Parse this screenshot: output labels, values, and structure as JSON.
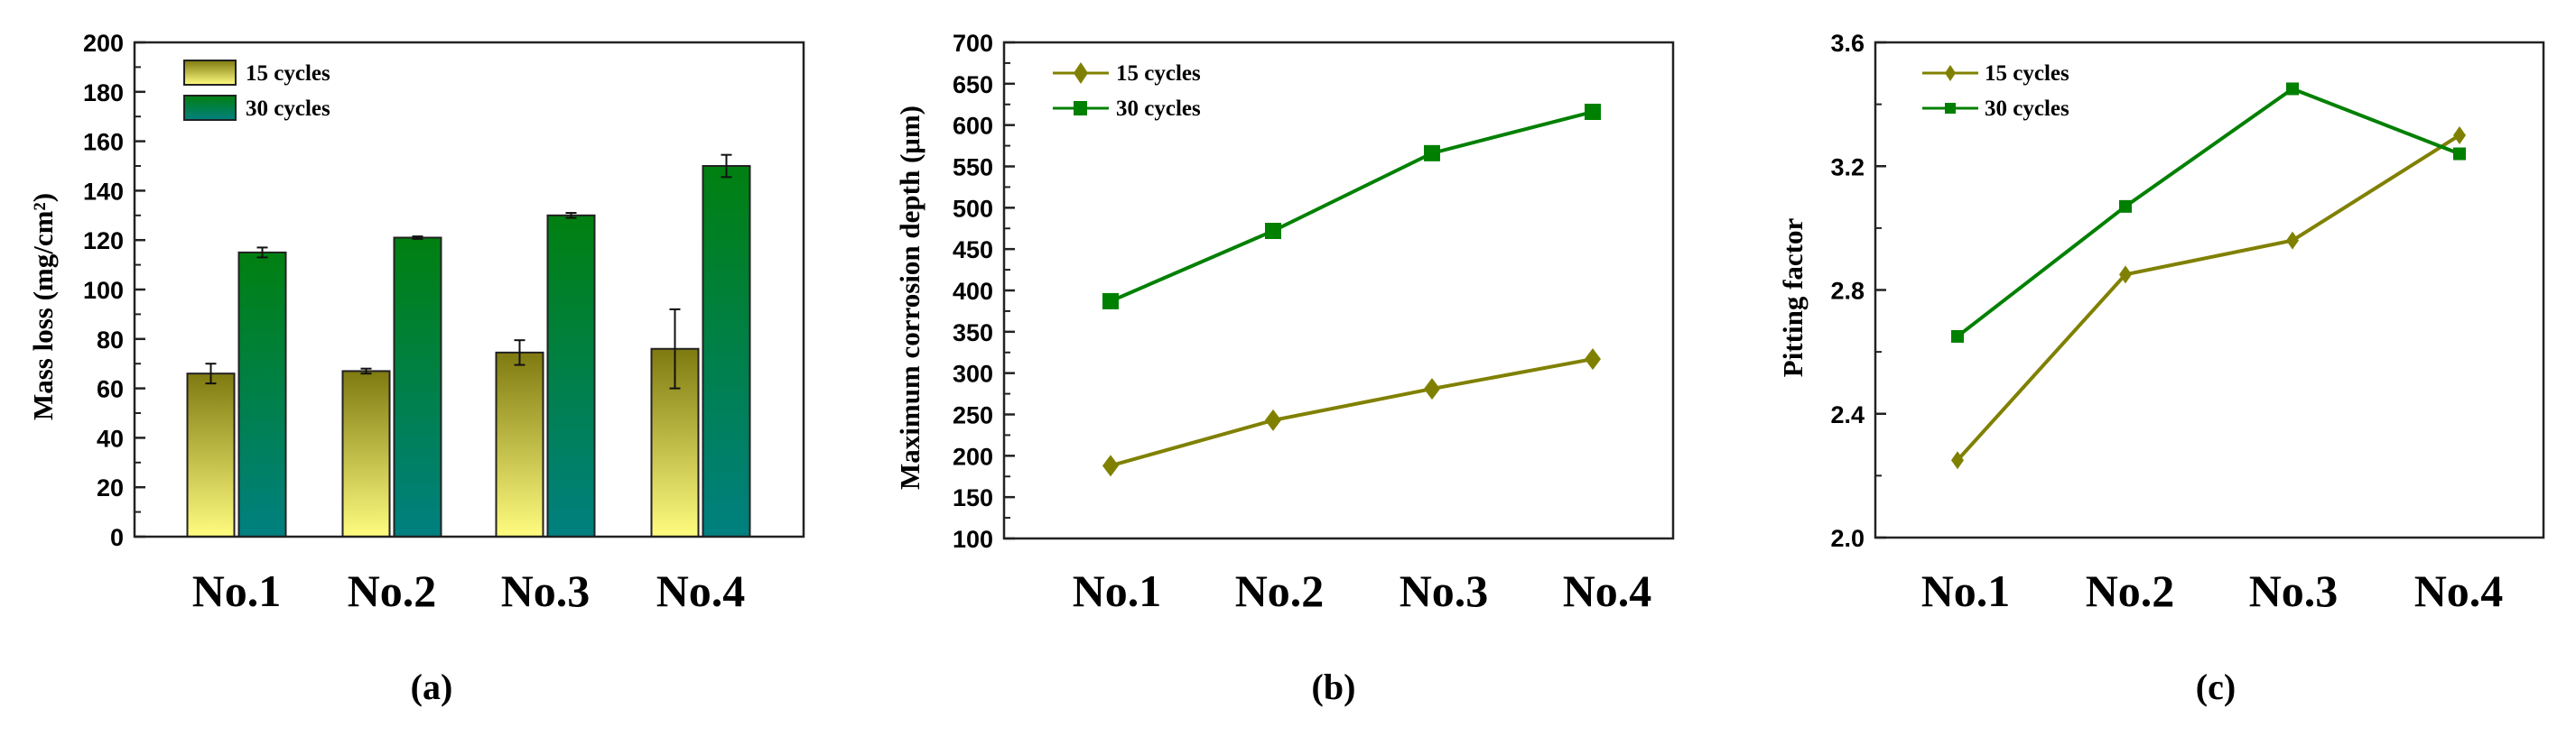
{
  "figure": {
    "panels": [
      "(a)",
      "(b)",
      "(c)"
    ]
  },
  "colors": {
    "series_15_line": "#808000",
    "series_30_line": "#008000",
    "bar_15_top": "#7f7a10",
    "bar_15_bottom": "#fffc80",
    "bar_30_top": "#008010",
    "bar_30_bottom": "#008080"
  },
  "chart_data": [
    {
      "id": "a",
      "type": "bar",
      "caption": "(a)",
      "title": "",
      "xlabel": "",
      "ylabel": "Mass loss (mg/cm²)",
      "categories": [
        "No.1",
        "No.2",
        "No.3",
        "No.4"
      ],
      "series": [
        {
          "name": "15 cycles",
          "values": [
            66,
            67,
            74.5,
            76
          ],
          "errors": [
            4,
            1,
            5,
            16
          ]
        },
        {
          "name": "30 cycles",
          "values": [
            115,
            121,
            130,
            150
          ],
          "errors": [
            2,
            0.5,
            1,
            4.5
          ]
        }
      ],
      "ylim": [
        0,
        200
      ],
      "yticks": [
        0,
        20,
        40,
        60,
        80,
        100,
        120,
        140,
        160,
        180,
        200
      ],
      "grid": false,
      "legend_position": "upper left"
    },
    {
      "id": "b",
      "type": "line",
      "caption": "(b)",
      "title": "",
      "xlabel": "",
      "ylabel": "Maximum corrosion depth (μm)",
      "categories": [
        "No.1",
        "No.2",
        "No.3",
        "No.4"
      ],
      "series": [
        {
          "name": "15 cycles",
          "marker": "diamond",
          "values": [
            188,
            243,
            281,
            317
          ]
        },
        {
          "name": "30 cycles",
          "marker": "square",
          "values": [
            387,
            472,
            566,
            616
          ]
        }
      ],
      "ylim": [
        100,
        700
      ],
      "yticks": [
        100,
        150,
        200,
        250,
        300,
        350,
        400,
        450,
        500,
        550,
        600,
        650,
        700
      ],
      "grid": false,
      "legend_position": "upper left"
    },
    {
      "id": "c",
      "type": "line",
      "caption": "(c)",
      "title": "",
      "xlabel": "",
      "ylabel": "Pitting factor",
      "categories": [
        "No.1",
        "No.2",
        "No.3",
        "No.4"
      ],
      "series": [
        {
          "name": "15 cycles",
          "marker": "diamond",
          "values": [
            2.25,
            2.85,
            2.96,
            3.3
          ]
        },
        {
          "name": "30 cycles",
          "marker": "square",
          "values": [
            2.65,
            3.07,
            3.45,
            3.24
          ]
        }
      ],
      "ylim": [
        2.0,
        3.6
      ],
      "yticks": [
        2.0,
        2.4,
        2.8,
        3.2,
        3.6
      ],
      "ytick_labels": [
        "2.0",
        "2.4",
        "2.8",
        "3.2",
        "3.6"
      ],
      "grid": false,
      "legend_position": "upper left"
    }
  ]
}
